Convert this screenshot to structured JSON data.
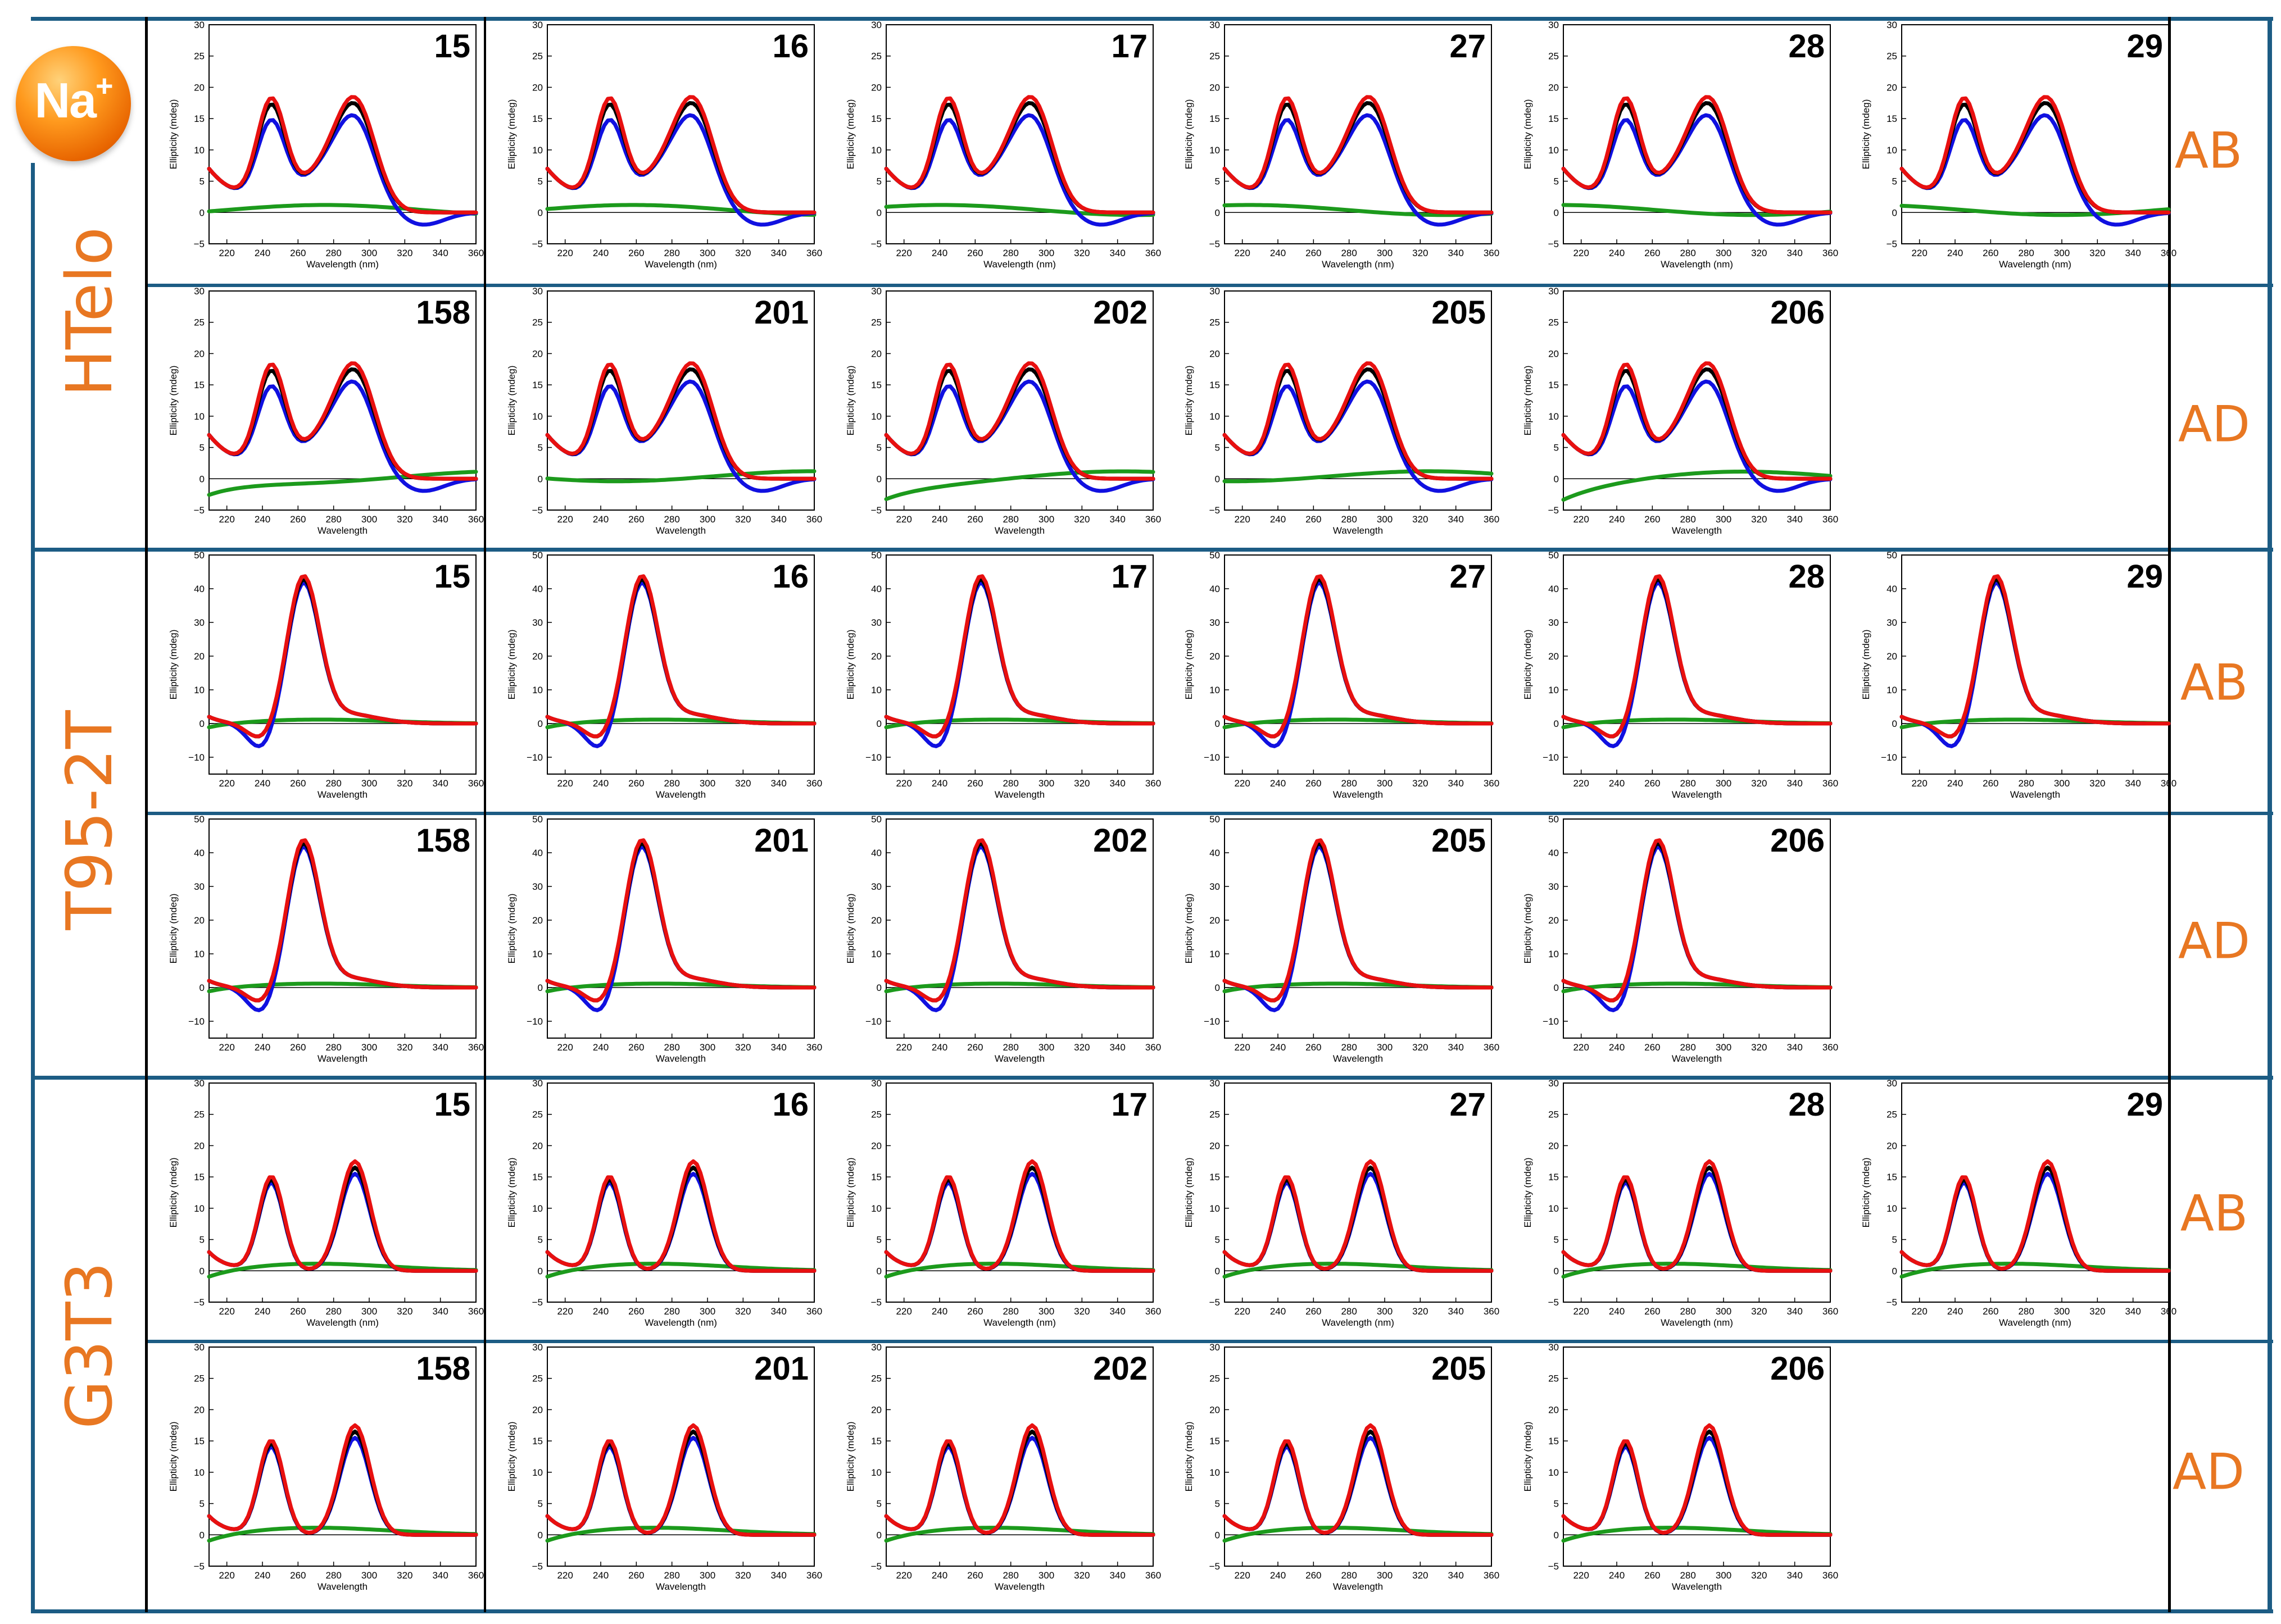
{
  "badge": {
    "ion": "Na",
    "charge": "+"
  },
  "group_labels": [
    "HTelo",
    "T95-2T",
    "G3T3"
  ],
  "row_tags": [
    "AB",
    "AD",
    "AB",
    "AD",
    "AB",
    "AD"
  ],
  "series_colors": {
    "black": "#000000",
    "blue": "#1010e0",
    "red": "#e81010",
    "green": "#1c9a1c"
  },
  "accent_color": "#e87722",
  "grid_color": "#1c5c84",
  "chart_data": [
    {
      "type": "line",
      "group": "HTelo",
      "variant": "AB",
      "compounds": [
        "15",
        "16",
        "17",
        "27",
        "28",
        "29"
      ],
      "xlabel": "Wavelength (nm)",
      "ylabel": "Ellipticity (mdeg)",
      "xlim": [
        210,
        360
      ],
      "ylim": [
        -5,
        30
      ],
      "xticks": [
        220,
        240,
        260,
        280,
        300,
        320,
        340,
        360
      ],
      "yticks": [
        -5,
        0,
        5,
        10,
        15,
        20,
        25,
        30
      ]
    },
    {
      "type": "line",
      "group": "HTelo",
      "variant": "AD",
      "compounds": [
        "158",
        "201",
        "202",
        "205",
        "206"
      ],
      "xlabel": "Wavelength",
      "ylabel": "Ellipticity (mdeg)",
      "xlim": [
        210,
        360
      ],
      "ylim": [
        -5,
        30
      ],
      "xticks": [
        220,
        240,
        260,
        280,
        300,
        320,
        340,
        360
      ],
      "yticks": [
        -5,
        0,
        5,
        10,
        15,
        20,
        25,
        30
      ]
    },
    {
      "type": "line",
      "group": "T95-2T",
      "variant": "AB",
      "compounds": [
        "15",
        "16",
        "17",
        "27",
        "28",
        "29"
      ],
      "xlabel": "Wavelength",
      "ylabel": "Ellipticity (mdeg)",
      "xlim": [
        210,
        360
      ],
      "ylim": [
        -15,
        50
      ],
      "xticks": [
        220,
        240,
        260,
        280,
        300,
        320,
        340,
        360
      ],
      "yticks": [
        -10,
        0,
        10,
        20,
        30,
        40,
        50
      ]
    },
    {
      "type": "line",
      "group": "T95-2T",
      "variant": "AD",
      "compounds": [
        "158",
        "201",
        "202",
        "205",
        "206"
      ],
      "xlabel": "Wavelength",
      "ylabel": "Ellipticity (mdeg)",
      "xlim": [
        210,
        360
      ],
      "ylim": [
        -15,
        50
      ],
      "xticks": [
        220,
        240,
        260,
        280,
        300,
        320,
        340,
        360
      ],
      "yticks": [
        -10,
        0,
        10,
        20,
        30,
        40,
        50
      ]
    },
    {
      "type": "line",
      "group": "G3T3",
      "variant": "AB",
      "compounds": [
        "15",
        "16",
        "17",
        "27",
        "28",
        "29"
      ],
      "xlabel": "Wavelength (nm)",
      "ylabel": "Ellipticity (mdeg)",
      "xlim": [
        210,
        360
      ],
      "ylim": [
        -5,
        30
      ],
      "xticks": [
        220,
        240,
        260,
        280,
        300,
        320,
        340,
        360
      ],
      "yticks": [
        -5,
        0,
        5,
        10,
        15,
        20,
        25,
        30
      ]
    },
    {
      "type": "line",
      "group": "G3T3",
      "variant": "AD",
      "compounds": [
        "158",
        "201",
        "202",
        "205",
        "206"
      ],
      "xlabel": "Wavelength",
      "ylabel": "Ellipticity (mdeg)",
      "xlim": [
        210,
        360
      ],
      "ylim": [
        -5,
        30
      ],
      "xticks": [
        220,
        240,
        260,
        280,
        300,
        320,
        340,
        360
      ],
      "yticks": [
        -5,
        0,
        5,
        10,
        15,
        20,
        25,
        30
      ]
    }
  ]
}
